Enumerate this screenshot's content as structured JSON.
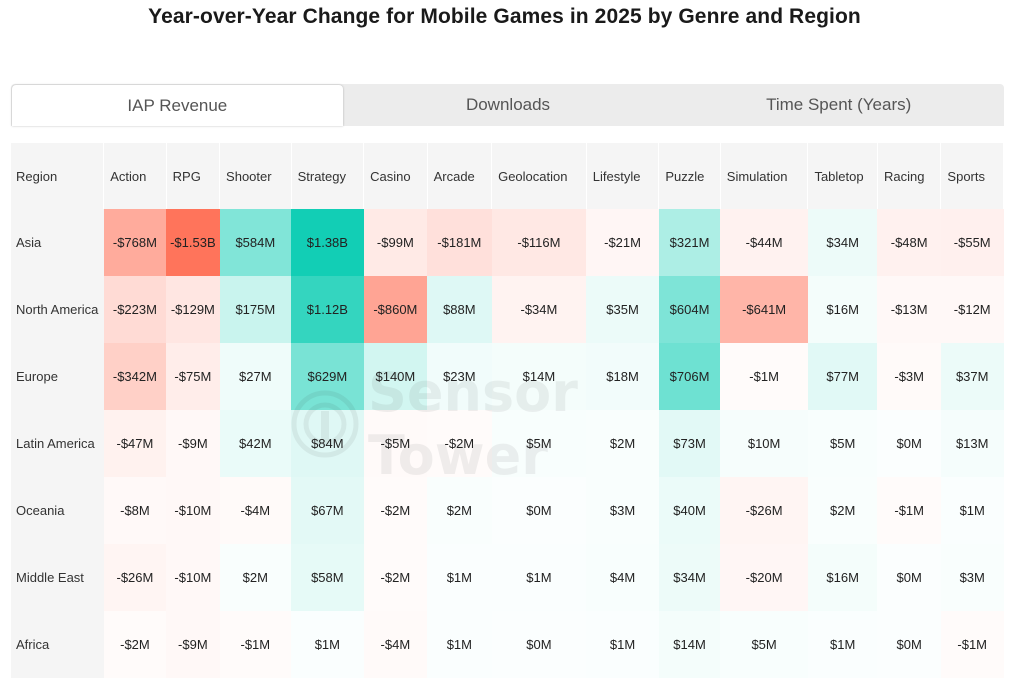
{
  "title": "Year-over-Year Change for Mobile Games in 2025 by Genre and Region",
  "tabs": [
    {
      "label": "IAP Revenue",
      "active": true
    },
    {
      "label": "Downloads",
      "active": false
    },
    {
      "label": "Time Spent (Years)",
      "active": false
    }
  ],
  "watermark": "Sensor Tower",
  "colors": {
    "positive": "#0fcdb4",
    "negative": "#ff735a",
    "header_bg": "#f5f5f5"
  },
  "chart_data": {
    "type": "heatmap",
    "title": "Year-over-Year Change for Mobile Games in 2025 by Genre and Region",
    "row_header": "Region",
    "columns": [
      "Action",
      "RPG",
      "Shooter",
      "Strategy",
      "Casino",
      "Arcade",
      "Geolocation",
      "Lifestyle",
      "Puzzle",
      "Simulation",
      "Tabletop",
      "Racing",
      "Sports"
    ],
    "rows": [
      {
        "region": "Asia",
        "labels": [
          "-$768M",
          "-$1.53B",
          "$584M",
          "$1.38B",
          "-$99M",
          "-$181M",
          "-$116M",
          "-$21M",
          "$321M",
          "-$44M",
          "$34M",
          "-$48M",
          "-$55M"
        ],
        "values": [
          -768,
          -1530,
          584,
          1380,
          -99,
          -181,
          -116,
          -21,
          321,
          -44,
          34,
          -48,
          -55
        ]
      },
      {
        "region": "North America",
        "labels": [
          "-$223M",
          "-$129M",
          "$175M",
          "$1.12B",
          "-$860M",
          "$88M",
          "-$34M",
          "$35M",
          "$604M",
          "-$641M",
          "$16M",
          "-$13M",
          "-$12M"
        ],
        "values": [
          -223,
          -129,
          175,
          1120,
          -860,
          88,
          -34,
          35,
          604,
          -641,
          16,
          -13,
          -12
        ]
      },
      {
        "region": "Europe",
        "labels": [
          "-$342M",
          "-$75M",
          "$27M",
          "$629M",
          "$140M",
          "$23M",
          "$14M",
          "$18M",
          "$706M",
          "-$1M",
          "$77M",
          "-$3M",
          "$37M"
        ],
        "values": [
          -342,
          -75,
          27,
          629,
          140,
          23,
          14,
          18,
          706,
          -1,
          77,
          -3,
          37
        ]
      },
      {
        "region": "Latin America",
        "labels": [
          "-$47M",
          "-$9M",
          "$42M",
          "$84M",
          "-$5M",
          "-$2M",
          "$5M",
          "$2M",
          "$73M",
          "$10M",
          "$5M",
          "$0M",
          "$13M"
        ],
        "values": [
          -47,
          -9,
          42,
          84,
          -5,
          -2,
          5,
          2,
          73,
          10,
          5,
          0,
          13
        ]
      },
      {
        "region": "Oceania",
        "labels": [
          "-$8M",
          "-$10M",
          "-$4M",
          "$67M",
          "-$2M",
          "$2M",
          "$0M",
          "$3M",
          "$40M",
          "-$26M",
          "$2M",
          "-$1M",
          "$1M"
        ],
        "values": [
          -8,
          -10,
          -4,
          67,
          -2,
          2,
          0,
          3,
          40,
          -26,
          2,
          -1,
          1
        ]
      },
      {
        "region": "Middle East",
        "labels": [
          "-$26M",
          "-$10M",
          "$2M",
          "$58M",
          "-$2M",
          "$1M",
          "$1M",
          "$4M",
          "$34M",
          "-$20M",
          "$16M",
          "$0M",
          "$3M"
        ],
        "values": [
          -26,
          -10,
          2,
          58,
          -2,
          1,
          1,
          4,
          34,
          -20,
          16,
          0,
          3
        ]
      },
      {
        "region": "Africa",
        "labels": [
          "-$2M",
          "-$9M",
          "-$1M",
          "$1M",
          "-$4M",
          "$1M",
          "$0M",
          "$1M",
          "$14M",
          "$5M",
          "$1M",
          "$0M",
          "-$1M"
        ],
        "values": [
          -2,
          -9,
          -1,
          1,
          -4,
          1,
          0,
          1,
          14,
          5,
          1,
          0,
          -1
        ]
      }
    ]
  }
}
